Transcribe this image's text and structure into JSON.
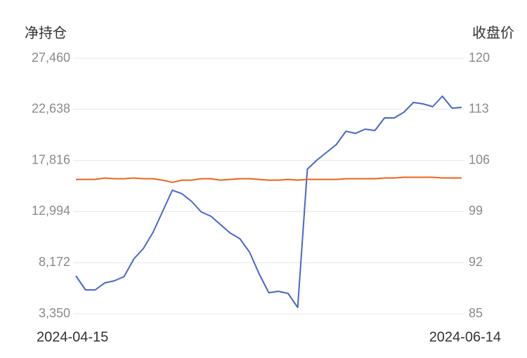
{
  "chart_data": {
    "type": "line",
    "y_label": "净持仓",
    "y2_label": "收盘价",
    "categories": [
      "2024-04-15",
      null,
      null,
      null,
      null,
      null,
      null,
      null,
      null,
      null,
      null,
      null,
      null,
      null,
      null,
      null,
      null,
      null,
      null,
      null,
      null,
      null,
      null,
      null,
      null,
      null,
      null,
      null,
      null,
      null,
      null,
      null,
      null,
      null,
      null,
      null,
      null,
      null,
      null,
      null,
      "2024-06-14"
    ],
    "series": [
      {
        "name": "净持仓",
        "color": "#4a66c8",
        "values": [
          6927,
          5602,
          5602,
          6265,
          6463,
          6861,
          8517,
          9510,
          11034,
          13021,
          15008,
          14677,
          13948,
          12955,
          12557,
          11762,
          10968,
          10438,
          9179,
          7126,
          5337,
          5470,
          5271,
          3946,
          16995,
          17857,
          18585,
          19314,
          20572,
          20374,
          20771,
          20638,
          21831,
          21831,
          22360,
          23288,
          23155,
          22890,
          23884,
          22757,
          22823
        ]
      },
      {
        "name": "收盘价",
        "color": "#f0601a",
        "axis": "y2",
        "values": [
          103.4,
          103.4,
          103.4,
          103.6,
          103.5,
          103.5,
          103.6,
          103.5,
          103.5,
          103.3,
          103.0,
          103.3,
          103.3,
          103.5,
          103.5,
          103.3,
          103.4,
          103.5,
          103.5,
          103.4,
          103.3,
          103.3,
          103.4,
          103.3,
          103.4,
          103.4,
          103.4,
          103.4,
          103.5,
          103.5,
          103.5,
          103.5,
          103.6,
          103.6,
          103.7,
          103.7,
          103.7,
          103.7,
          103.6,
          103.6,
          103.6
        ]
      }
    ],
    "ylim": [
      3350,
      27460
    ],
    "yticks": [
      {
        "value": 3350,
        "label": "3,350"
      },
      {
        "value": 8172,
        "label": "8,172"
      },
      {
        "value": 12994,
        "label": "12,994"
      },
      {
        "value": 17816,
        "label": "17,816"
      },
      {
        "value": 22638,
        "label": "22,638"
      },
      {
        "value": 27460,
        "label": "27,460"
      }
    ],
    "y2lim": [
      85,
      120
    ],
    "y2ticks": [
      85,
      92,
      99,
      106,
      113,
      120
    ],
    "grid": true
  }
}
